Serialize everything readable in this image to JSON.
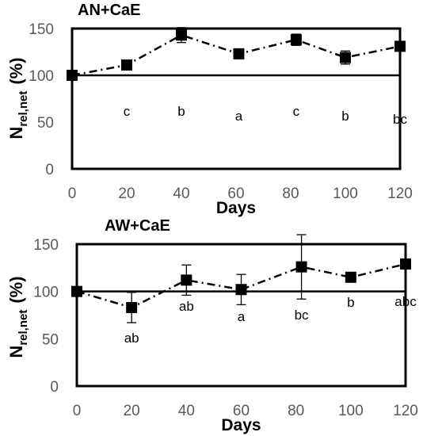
{
  "chart_data": [
    {
      "type": "line",
      "title": "AN+CaE",
      "xlabel": "Days",
      "ylabel_main": "N",
      "ylabel_sub": "rel,net",
      "ylabel_unit": "(%)",
      "xlim": [
        0,
        120
      ],
      "ylim": [
        0,
        150
      ],
      "xticks": [
        "0",
        "20",
        "40",
        "60",
        "80",
        "100",
        "120"
      ],
      "yticks": [
        "0",
        "50",
        "100",
        "150"
      ],
      "reference_line": 100,
      "series": [
        {
          "x": [
            0,
            20,
            40,
            61,
            82,
            100,
            120
          ],
          "y": [
            100,
            111,
            143,
            123,
            138,
            119,
            131
          ],
          "err": [
            0,
            3,
            8,
            3,
            6,
            7,
            4
          ],
          "labels": [
            "",
            "c",
            "b",
            "a",
            "c",
            "b",
            "bc"
          ]
        }
      ]
    },
    {
      "type": "line",
      "title": "AW+CaE",
      "xlabel": "Days",
      "ylabel_main": "N",
      "ylabel_sub": "rel,net",
      "ylabel_unit": "(%)",
      "xlim": [
        0,
        120
      ],
      "ylim": [
        0,
        150
      ],
      "xticks": [
        "0",
        "20",
        "40",
        "60",
        "80",
        "100",
        "120"
      ],
      "yticks": [
        "0",
        "50",
        "100",
        "150"
      ],
      "reference_line": 100,
      "series": [
        {
          "x": [
            0,
            20,
            40,
            60,
            82,
            100,
            120
          ],
          "y": [
            100,
            83,
            112,
            102,
            126,
            115,
            129
          ],
          "err": [
            0,
            16,
            16,
            16,
            34,
            3,
            3
          ],
          "labels": [
            "",
            "ab",
            "ab",
            "a",
            "bc",
            "b",
            "abc"
          ]
        }
      ]
    }
  ]
}
